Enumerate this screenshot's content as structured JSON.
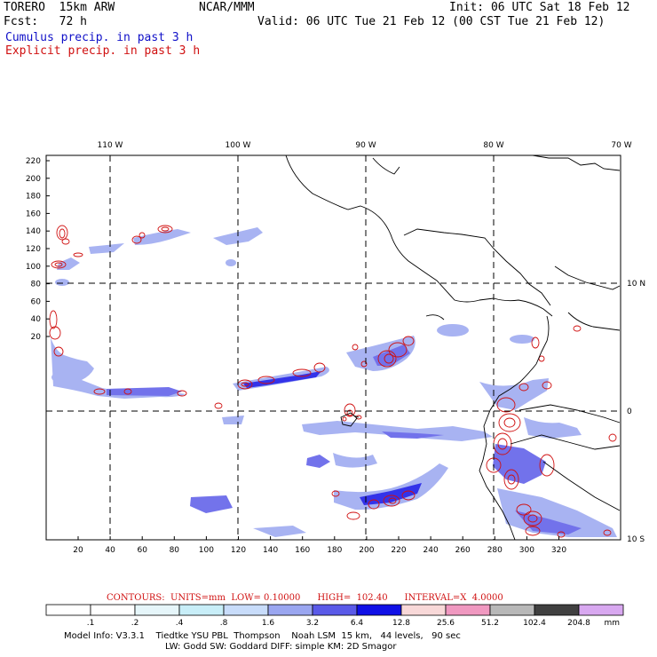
{
  "header": {
    "model": "TORERO  15km ARW",
    "center": "NCAR/MMM",
    "init": "Init: 06 UTC Sat 18 Feb 12",
    "fcst": "Fcst:   72 h",
    "valid": "Valid: 06 UTC Tue 21 Feb 12 (00 CST Tue 21 Feb 12)",
    "field1": "Cumulus precip. in past 3 h",
    "field2": "Explicit precip. in past 3 h"
  },
  "map": {
    "lon_labels": [
      "110 W",
      "100 W",
      "90 W",
      "80 W",
      "70 W"
    ],
    "lat_labels": [
      "10 N",
      "0",
      "10 S"
    ],
    "y_ticks": [
      "220",
      "200",
      "180",
      "160",
      "140",
      "120",
      "100",
      "80",
      "60",
      "40",
      "20"
    ],
    "x_ticks": [
      "20",
      "40",
      "60",
      "80",
      "100",
      "120",
      "140",
      "160",
      "180",
      "200",
      "220",
      "240",
      "260",
      "280",
      "300",
      "320"
    ]
  },
  "contours": {
    "label": "CONTOURS:  UNITS=mm  LOW= 0.10000      HIGH=  102.40      INTERVAL=X  4.0000"
  },
  "colorbar": {
    "labels": [
      ".1",
      ".2",
      ".4",
      ".8",
      "1.6",
      "3.2",
      "6.4",
      "12.8",
      "25.6",
      "51.2",
      "102.4",
      "204.8"
    ],
    "units": "mm",
    "colors": [
      "#ffffff",
      "#ffffff",
      "#e6f6fa",
      "#c8eef8",
      "#c8dcfa",
      "#9aa6f0",
      "#5a5ae8",
      "#1010e6",
      "#f8d8d8",
      "#f098c0",
      "#b8b8b8",
      "#404040",
      "#d8a8f0"
    ]
  },
  "model_info": {
    "line1": "Model Info: V3.3.1    Tiedtke YSU PBL  Thompson    Noah LSM  15 km,   44 levels,   90 sec",
    "line2": "LW: Godd SW: Goddard DIFF: simple KM: 2D Smagor"
  }
}
